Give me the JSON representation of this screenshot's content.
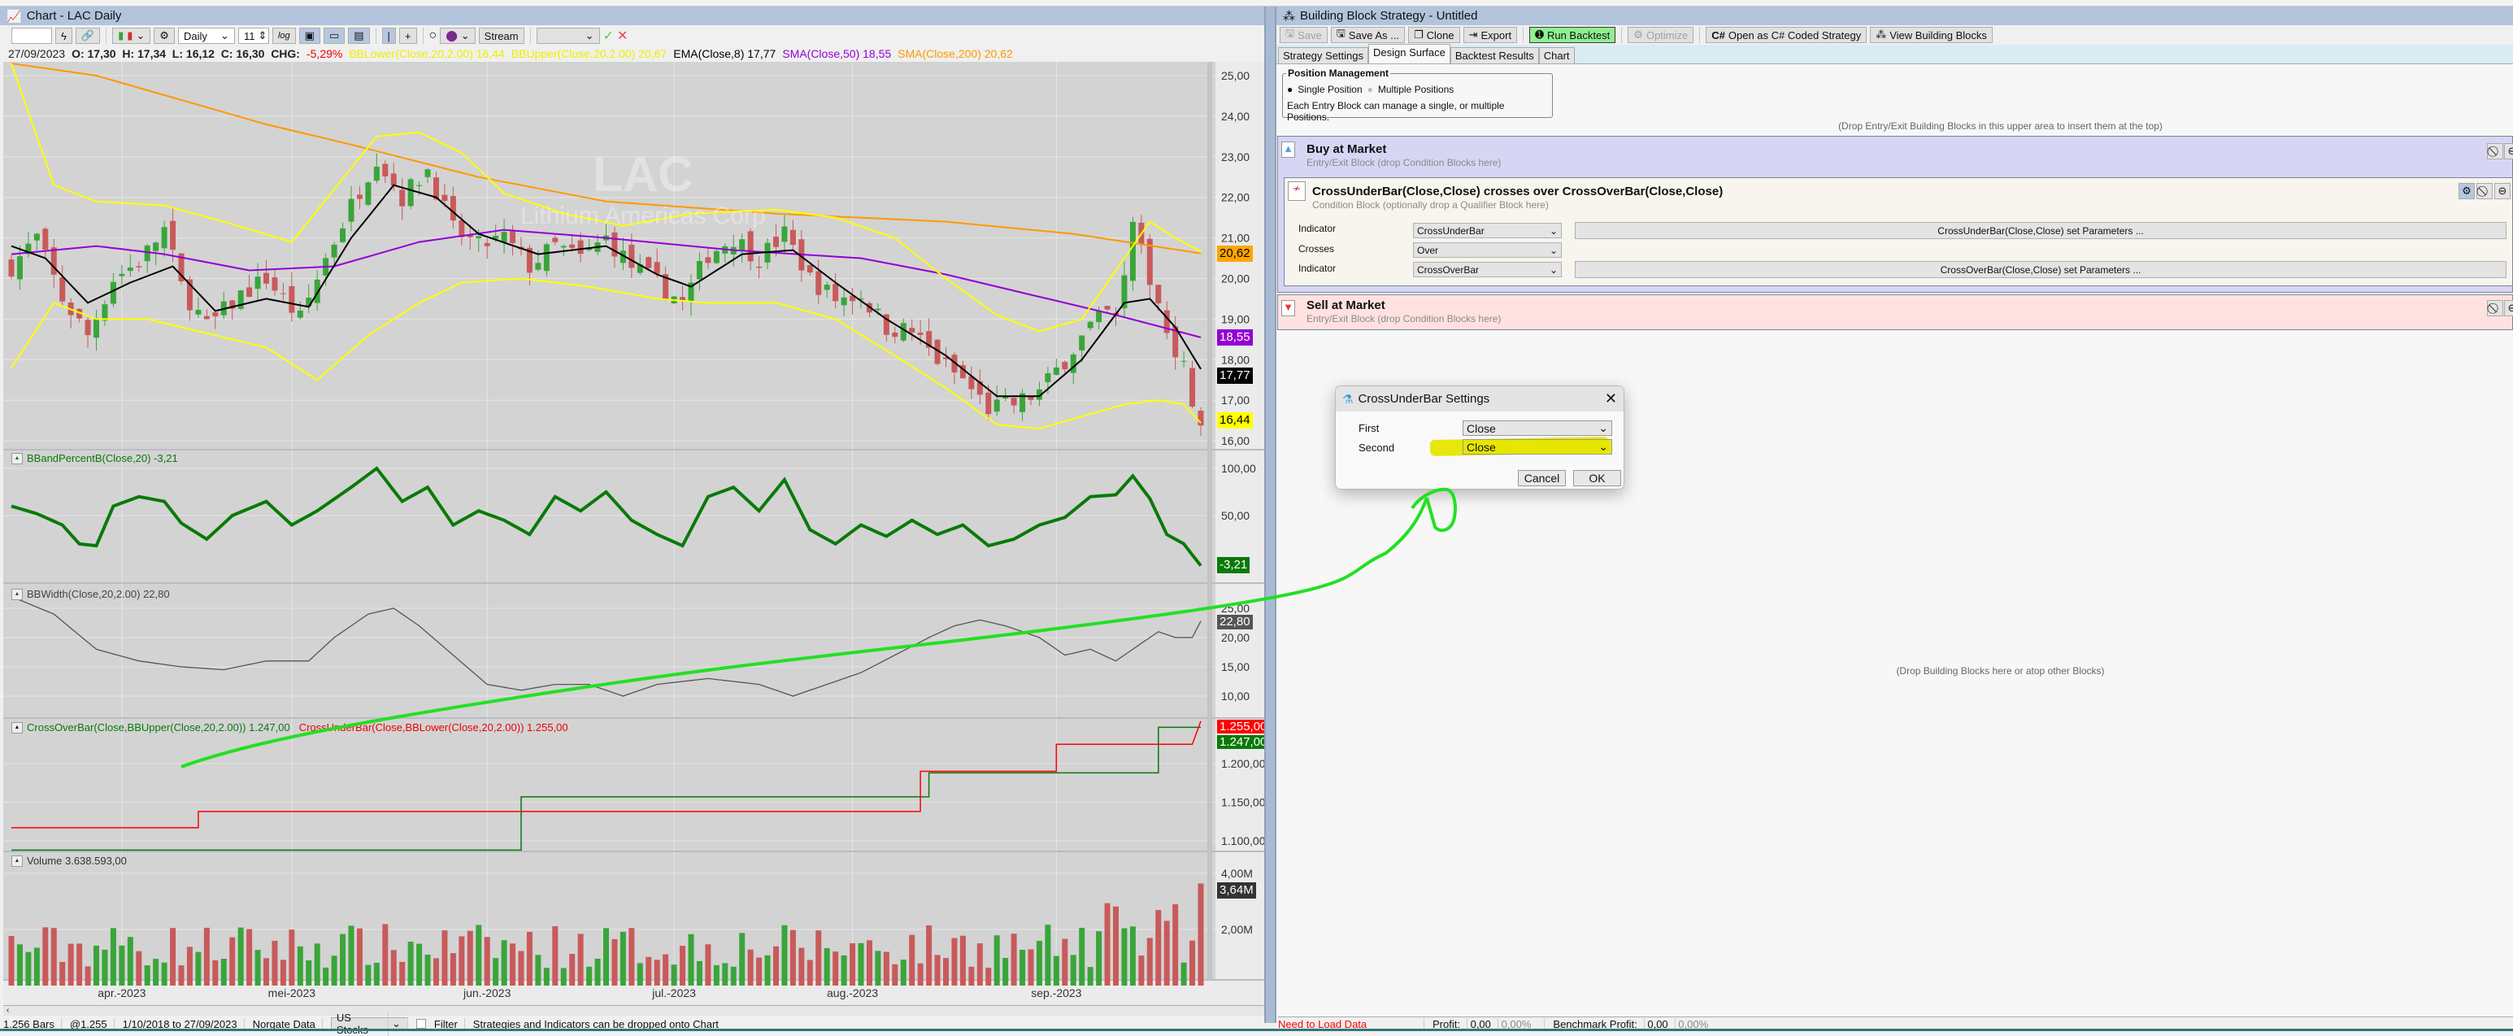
{
  "chart_window": {
    "title": "Chart - LAC Daily",
    "toolbar": {
      "symbol_value": "",
      "scale": "Daily",
      "bar_spacing": "11",
      "log_label": "log",
      "cursor_mode": "|",
      "crosshair": "+",
      "stream_label": "Stream",
      "strategy_select": "",
      "apply": "✓",
      "cancel": "✕"
    },
    "legend": {
      "date": "27/09/2023",
      "ohlc": "O: 17,30  H: 17,34  L: 16,12  C: 16,30  CHG:",
      "chg": "-5,29%",
      "items": [
        {
          "text": "BBLower(Close,20,2.00) 16,44",
          "color": "#ffff00"
        },
        {
          "text": "BBUpper(Close,20,2.00) 20,67",
          "color": "#ffff00"
        },
        {
          "text": "EMA(Close,8) 17,77",
          "color": "#000000"
        },
        {
          "text": "SMA(Close,50) 18,55",
          "color": "#9400d3"
        },
        {
          "text": "SMA(Close,200) 20,62",
          "color": "#ff9900"
        }
      ]
    },
    "watermark": {
      "symbol": "LAC",
      "name": "Lithium Americas Corp"
    },
    "panes": {
      "percentb": "BBandPercentB(Close,20) -3,21",
      "bbwidth": "BBWidth(Close,20,2.00) 22,80",
      "crossover": "CrossOverBar(Close,BBUpper(Close,20,2.00)) 1.247,00",
      "crossunder": "CrossUnderBar(Close,BBLower(Close,20,2.00)) 1.255,00",
      "volume": "Volume 3.638.593,00"
    },
    "axes": {
      "price": [
        "25,00",
        "24,00",
        "23,00",
        "22,00",
        "21,00",
        "20,00",
        "19,00",
        "18,00",
        "17,00",
        "16,00"
      ],
      "percentb": [
        "100,00",
        "50,00"
      ],
      "bbwidth": [
        "25,00",
        "20,00",
        "15,00",
        "10,00"
      ],
      "cross": [
        "1.200,00",
        "1.150,00",
        "1.100,00"
      ],
      "volume": [
        "4,00M",
        "2,00M"
      ],
      "dates": [
        "apr.-2023",
        "mei-2023",
        "jun.-2023",
        "jul.-2023",
        "aug.-2023",
        "sep.-2023"
      ]
    },
    "tags": {
      "sma200": "20,62",
      "sma50": "18,55",
      "ema": "17,77",
      "bblower": "16,44",
      "percentb": "-3,21",
      "bbwidth": "22,80",
      "crossunder": "1.255,00",
      "crossover": "1.247,00",
      "volume": "3,64M"
    },
    "status": {
      "bars": "1.256 Bars",
      "at": "@1.255",
      "range": "1/10/2018 to 27/09/2023",
      "provider": "Norgate Data",
      "universe": "US Stocks",
      "filter": "Filter",
      "hint": "Strategies and Indicators can be dropped onto Chart"
    }
  },
  "chart_data": {
    "type": "candlestick",
    "bar_count": 141,
    "date_ticks": [
      {
        "label": "apr.-2023",
        "bar": 13
      },
      {
        "label": "mei-2023",
        "bar": 33
      },
      {
        "label": "jun.-2023",
        "bar": 56
      },
      {
        "label": "jul.-2023",
        "bar": 78
      },
      {
        "label": "aug.-2023",
        "bar": 99
      },
      {
        "label": "sep.-2023",
        "bar": 123
      }
    ],
    "price_range": [
      16,
      25
    ],
    "close": [
      [
        0,
        20.3
      ],
      [
        3,
        21.0
      ],
      [
        6,
        19.5
      ],
      [
        9,
        18.6
      ],
      [
        12,
        20.0
      ],
      [
        15,
        20.4
      ],
      [
        18,
        21.2
      ],
      [
        20,
        19.8
      ],
      [
        23,
        18.8
      ],
      [
        27,
        19.6
      ],
      [
        30,
        20.0
      ],
      [
        34,
        19.0
      ],
      [
        37,
        20.5
      ],
      [
        40,
        21.8
      ],
      [
        43,
        23.0
      ],
      [
        46,
        22.0
      ],
      [
        49,
        22.7
      ],
      [
        52,
        21.2
      ],
      [
        55,
        20.8
      ],
      [
        58,
        21.0
      ],
      [
        61,
        20.3
      ],
      [
        64,
        20.8
      ],
      [
        67,
        20.5
      ],
      [
        70,
        21.0
      ],
      [
        73,
        20.3
      ],
      [
        76,
        19.9
      ],
      [
        79,
        19.4
      ],
      [
        82,
        20.6
      ],
      [
        85,
        21.0
      ],
      [
        88,
        20.5
      ],
      [
        91,
        21.1
      ],
      [
        94,
        20.0
      ],
      [
        97,
        19.5
      ],
      [
        100,
        19.6
      ],
      [
        103,
        18.8
      ],
      [
        106,
        18.7
      ],
      [
        109,
        18.0
      ],
      [
        112,
        17.5
      ],
      [
        115,
        16.8
      ],
      [
        118,
        16.9
      ],
      [
        121,
        17.2
      ],
      [
        124,
        18.0
      ],
      [
        127,
        18.8
      ],
      [
        130,
        19.3
      ],
      [
        132,
        21.2
      ],
      [
        134,
        20.0
      ],
      [
        136,
        18.8
      ],
      [
        138,
        17.8
      ],
      [
        140,
        16.3
      ]
    ],
    "ema8": [
      [
        0,
        20.8
      ],
      [
        4,
        20.5
      ],
      [
        9,
        19.4
      ],
      [
        14,
        19.9
      ],
      [
        19,
        20.3
      ],
      [
        24,
        19.2
      ],
      [
        30,
        19.5
      ],
      [
        35,
        19.3
      ],
      [
        40,
        21.0
      ],
      [
        45,
        22.3
      ],
      [
        50,
        22.0
      ],
      [
        55,
        21.1
      ],
      [
        62,
        20.6
      ],
      [
        70,
        20.8
      ],
      [
        76,
        20.1
      ],
      [
        80,
        19.8
      ],
      [
        86,
        20.6
      ],
      [
        92,
        20.7
      ],
      [
        97,
        19.9
      ],
      [
        103,
        19.0
      ],
      [
        110,
        18.1
      ],
      [
        116,
        17.1
      ],
      [
        121,
        17.1
      ],
      [
        126,
        18.0
      ],
      [
        131,
        19.4
      ],
      [
        134,
        19.5
      ],
      [
        137,
        18.8
      ],
      [
        140,
        17.77
      ]
    ],
    "sma50": [
      [
        0,
        20.6
      ],
      [
        10,
        20.8
      ],
      [
        18,
        20.6
      ],
      [
        28,
        20.2
      ],
      [
        38,
        20.3
      ],
      [
        48,
        20.9
      ],
      [
        58,
        21.2
      ],
      [
        70,
        21.0
      ],
      [
        85,
        20.7
      ],
      [
        100,
        20.5
      ],
      [
        110,
        20.1
      ],
      [
        120,
        19.6
      ],
      [
        130,
        19.1
      ],
      [
        140,
        18.55
      ]
    ],
    "sma200": [
      [
        0,
        25.3
      ],
      [
        10,
        25.0
      ],
      [
        20,
        24.4
      ],
      [
        30,
        23.8
      ],
      [
        40,
        23.3
      ],
      [
        55,
        22.5
      ],
      [
        70,
        21.9
      ],
      [
        90,
        21.6
      ],
      [
        110,
        21.4
      ],
      [
        125,
        21.1
      ],
      [
        140,
        20.62
      ]
    ],
    "bbupper": [
      [
        0,
        25.3
      ],
      [
        5,
        22.3
      ],
      [
        10,
        21.9
      ],
      [
        18,
        21.8
      ],
      [
        25,
        21.4
      ],
      [
        33,
        20.9
      ],
      [
        38,
        22.2
      ],
      [
        43,
        23.5
      ],
      [
        48,
        23.6
      ],
      [
        53,
        23.1
      ],
      [
        58,
        22.1
      ],
      [
        65,
        21.6
      ],
      [
        72,
        21.3
      ],
      [
        80,
        21.6
      ],
      [
        90,
        21.7
      ],
      [
        97,
        21.5
      ],
      [
        104,
        21.0
      ],
      [
        110,
        20.0
      ],
      [
        116,
        19.1
      ],
      [
        121,
        18.7
      ],
      [
        126,
        19.0
      ],
      [
        130,
        20.2
      ],
      [
        134,
        21.4
      ],
      [
        137,
        21.0
      ],
      [
        140,
        20.67
      ]
    ],
    "bblower": [
      [
        0,
        17.8
      ],
      [
        5,
        19.4
      ],
      [
        10,
        19.0
      ],
      [
        16,
        19.0
      ],
      [
        22,
        18.7
      ],
      [
        30,
        18.3
      ],
      [
        36,
        17.5
      ],
      [
        42,
        18.6
      ],
      [
        48,
        19.4
      ],
      [
        53,
        19.9
      ],
      [
        60,
        20.0
      ],
      [
        68,
        19.8
      ],
      [
        76,
        19.5
      ],
      [
        82,
        19.4
      ],
      [
        90,
        19.4
      ],
      [
        97,
        19.0
      ],
      [
        104,
        18.1
      ],
      [
        110,
        17.3
      ],
      [
        116,
        16.4
      ],
      [
        121,
        16.3
      ],
      [
        126,
        16.6
      ],
      [
        131,
        16.9
      ],
      [
        135,
        17.0
      ],
      [
        138,
        16.9
      ],
      [
        140,
        16.44
      ]
    ],
    "percentb": [
      [
        0,
        60
      ],
      [
        3,
        52
      ],
      [
        6,
        40
      ],
      [
        8,
        20
      ],
      [
        10,
        18
      ],
      [
        12,
        60
      ],
      [
        15,
        70
      ],
      [
        18,
        65
      ],
      [
        20,
        42
      ],
      [
        23,
        25
      ],
      [
        26,
        50
      ],
      [
        30,
        65
      ],
      [
        33,
        40
      ],
      [
        36,
        55
      ],
      [
        40,
        80
      ],
      [
        43,
        100
      ],
      [
        46,
        65
      ],
      [
        49,
        80
      ],
      [
        52,
        40
      ],
      [
        55,
        55
      ],
      [
        58,
        45
      ],
      [
        61,
        30
      ],
      [
        64,
        70
      ],
      [
        67,
        55
      ],
      [
        70,
        75
      ],
      [
        73,
        45
      ],
      [
        76,
        30
      ],
      [
        79,
        18
      ],
      [
        82,
        70
      ],
      [
        85,
        80
      ],
      [
        88,
        55
      ],
      [
        91,
        88
      ],
      [
        94,
        35
      ],
      [
        97,
        20
      ],
      [
        100,
        40
      ],
      [
        103,
        28
      ],
      [
        106,
        45
      ],
      [
        109,
        30
      ],
      [
        112,
        40
      ],
      [
        115,
        18
      ],
      [
        118,
        25
      ],
      [
        121,
        40
      ],
      [
        124,
        48
      ],
      [
        127,
        70
      ],
      [
        130,
        72
      ],
      [
        132,
        92
      ],
      [
        134,
        68
      ],
      [
        136,
        30
      ],
      [
        138,
        20
      ],
      [
        140,
        -3.21
      ]
    ],
    "bbwidth": [
      [
        0,
        27
      ],
      [
        5,
        24
      ],
      [
        10,
        18
      ],
      [
        15,
        16
      ],
      [
        20,
        15
      ],
      [
        25,
        14.5
      ],
      [
        30,
        16
      ],
      [
        35,
        16
      ],
      [
        38,
        20
      ],
      [
        42,
        24
      ],
      [
        45,
        25
      ],
      [
        48,
        22
      ],
      [
        52,
        17
      ],
      [
        56,
        12
      ],
      [
        60,
        11
      ],
      [
        64,
        12
      ],
      [
        68,
        12
      ],
      [
        72,
        10
      ],
      [
        76,
        12
      ],
      [
        82,
        13
      ],
      [
        88,
        12
      ],
      [
        92,
        10
      ],
      [
        96,
        12
      ],
      [
        100,
        14
      ],
      [
        104,
        17
      ],
      [
        108,
        20
      ],
      [
        111,
        22
      ],
      [
        114,
        23
      ],
      [
        117,
        22
      ],
      [
        121,
        20
      ],
      [
        124,
        17
      ],
      [
        127,
        18
      ],
      [
        130,
        16
      ],
      [
        133,
        19
      ],
      [
        135,
        21
      ],
      [
        137,
        20
      ],
      [
        139,
        20
      ],
      [
        140,
        22.8
      ]
    ],
    "crossover_steps": [
      [
        0,
        1088
      ],
      [
        60,
        1088
      ],
      [
        60,
        1157
      ],
      [
        108,
        1157
      ],
      [
        108,
        1188
      ],
      [
        135,
        1188
      ],
      [
        135,
        1247
      ],
      [
        140,
        1247
      ]
    ],
    "crossunder_steps": [
      [
        0,
        1117
      ],
      [
        22,
        1117
      ],
      [
        22,
        1138
      ],
      [
        107,
        1138
      ],
      [
        107,
        1190
      ],
      [
        164,
        1190
      ]
    ],
    "crossunder_steps_full": [
      [
        0,
        1117
      ],
      [
        22,
        1117
      ],
      [
        22,
        1138
      ],
      [
        107,
        1138
      ],
      [
        107,
        1190
      ],
      [
        165,
        1190
      ]
    ],
    "crossunder": [
      [
        0,
        1117
      ],
      [
        22,
        1117
      ],
      [
        22,
        1138
      ],
      [
        107,
        1138
      ],
      [
        107,
        1190
      ],
      [
        164,
        1190
      ],
      [
        164,
        1225
      ],
      [
        140,
        1255
      ]
    ],
    "volume_peak_millions": 3.64
  },
  "strategy_window": {
    "title": "Building Block Strategy - Untitled",
    "toolbar": [
      "Save",
      "Save As ...",
      "Clone",
      "Export",
      "Run Backtest",
      "Optimize",
      "Open as C# Coded Strategy",
      "View Building Blocks"
    ],
    "tabs": [
      "Strategy Settings",
      "Design Surface",
      "Backtest Results",
      "Chart"
    ],
    "position_mgmt": {
      "title": "Position Management",
      "single": "Single Position",
      "multiple": "Multiple Positions",
      "note": "Each Entry Block can manage a single, or multiple Positions."
    },
    "drop_top_hint": "(Drop Entry/Exit Building Blocks in this upper area to insert them at the top)",
    "buy_block": {
      "title": "Buy at Market",
      "subtitle": "Entry/Exit Block (drop Condition Blocks here)"
    },
    "condition_block": {
      "title": "CrossUnderBar(Close,Close) crosses over CrossOverBar(Close,Close)",
      "subtitle": "Condition Block (optionally drop a Qualifier Block here)",
      "rows": [
        {
          "label": "Indicator",
          "value": "CrossUnderBar",
          "param_button": "CrossUnderBar(Close,Close) set Parameters ..."
        },
        {
          "label": "Crosses",
          "value": "Over"
        },
        {
          "label": "Indicator",
          "value": "CrossOverBar",
          "param_button": "CrossOverBar(Close,Close) set Parameters ..."
        }
      ]
    },
    "sell_block": {
      "title": "Sell at Market",
      "subtitle": "Entry/Exit Block (drop Condition Blocks here)"
    },
    "drop_hint": "(Drop Building Blocks here or atop other Blocks)",
    "status": {
      "load": "Need to Load Data",
      "profit_label": "Profit:",
      "profit": "0,00",
      "profit_pct": "0,00%",
      "bench_label": "Benchmark Profit:",
      "bench": "0,00",
      "bench_pct": "0,00%"
    }
  },
  "dialog": {
    "title": "CrossUnderBar Settings",
    "first_label": "First",
    "first_value": "Close",
    "second_label": "Second",
    "second_value": "Close",
    "cancel": "Cancel",
    "ok": "OK"
  },
  "colors": {
    "up": "#3aa53a",
    "down": "#c85a5a",
    "annotation_green": "#22e022",
    "highlight_yellow": "#e6e600"
  }
}
